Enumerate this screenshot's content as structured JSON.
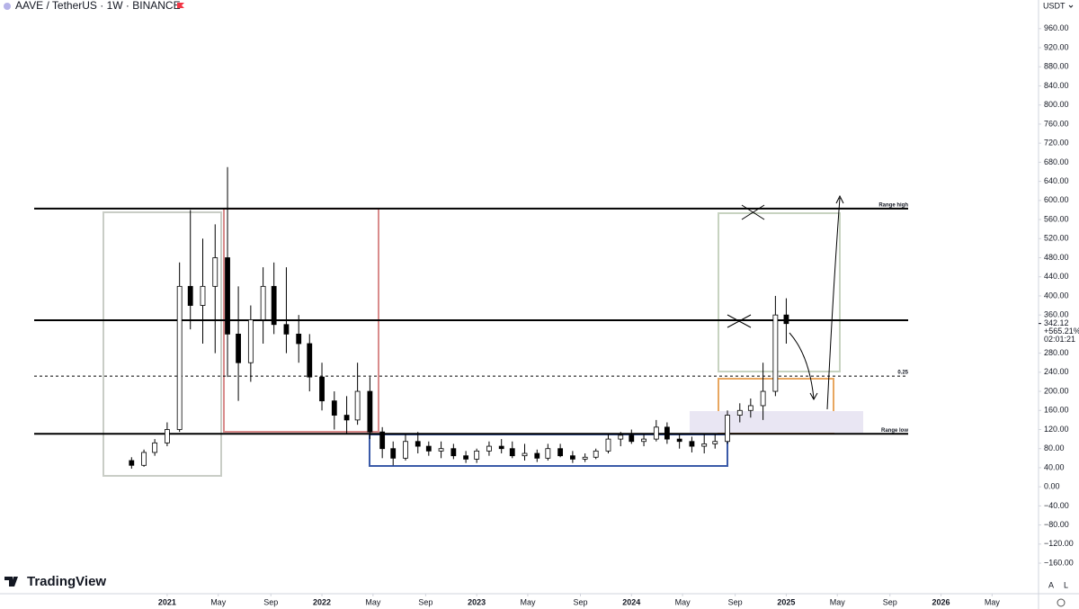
{
  "chart_data": {
    "type": "candlestick",
    "title": "AAVE / TetherUS · 1W · BINANCE",
    "currency": "USDT",
    "x": [
      2020.77,
      2020.85,
      2020.92,
      2021.0,
      2021.08,
      2021.15,
      2021.23,
      2021.31,
      2021.39,
      2021.46,
      2021.54,
      2021.62,
      2021.69,
      2021.77,
      2021.85,
      2021.92,
      2022.0,
      2022.08,
      2022.16,
      2022.23,
      2022.31,
      2022.39,
      2022.46,
      2022.54,
      2022.62,
      2022.69,
      2022.77,
      2022.85,
      2022.93,
      2023.0,
      2023.08,
      2023.16,
      2023.23,
      2023.31,
      2023.39,
      2023.46,
      2023.54,
      2023.62,
      2023.7,
      2023.77,
      2023.85,
      2023.93,
      2024.0,
      2024.08,
      2024.16,
      2024.23,
      2024.31,
      2024.39,
      2024.47,
      2024.54,
      2024.62,
      2024.7,
      2024.77,
      2024.85,
      2024.93,
      2025.0
    ],
    "open": [
      55,
      45,
      72,
      92,
      120,
      420,
      380,
      420,
      480,
      320,
      260,
      350,
      420,
      340,
      320,
      300,
      230,
      180,
      150,
      140,
      200,
      115,
      80,
      60,
      95,
      85,
      75,
      80,
      65,
      58,
      75,
      85,
      80,
      65,
      70,
      60,
      80,
      65,
      58,
      62,
      75,
      100,
      108,
      95,
      100,
      125,
      100,
      95,
      85,
      90,
      95,
      150,
      160,
      170,
      200,
      360
    ],
    "high": [
      62,
      78,
      100,
      135,
      470,
      580,
      520,
      550,
      670,
      420,
      380,
      460,
      470,
      460,
      360,
      320,
      260,
      200,
      190,
      260,
      230,
      125,
      95,
      110,
      115,
      95,
      95,
      90,
      75,
      80,
      95,
      100,
      95,
      90,
      78,
      90,
      90,
      75,
      70,
      80,
      110,
      115,
      120,
      110,
      140,
      135,
      110,
      105,
      110,
      110,
      160,
      175,
      185,
      260,
      400,
      395
    ],
    "low": [
      38,
      42,
      65,
      85,
      115,
      330,
      300,
      280,
      230,
      180,
      220,
      300,
      320,
      280,
      260,
      200,
      160,
      120,
      110,
      130,
      100,
      60,
      45,
      55,
      70,
      65,
      60,
      58,
      50,
      50,
      65,
      70,
      60,
      55,
      52,
      55,
      62,
      50,
      52,
      58,
      70,
      85,
      90,
      85,
      95,
      90,
      80,
      72,
      70,
      80,
      90,
      135,
      145,
      140,
      190,
      300
    ],
    "close": [
      45,
      72,
      92,
      120,
      420,
      380,
      420,
      480,
      320,
      260,
      350,
      420,
      340,
      320,
      300,
      230,
      180,
      150,
      140,
      200,
      115,
      80,
      60,
      95,
      85,
      75,
      80,
      65,
      58,
      75,
      85,
      80,
      65,
      70,
      60,
      80,
      65,
      58,
      62,
      75,
      100,
      108,
      95,
      100,
      125,
      100,
      95,
      85,
      90,
      95,
      150,
      160,
      170,
      200,
      360,
      342
    ],
    "up_color": "#ffffff",
    "down_color": "#000000",
    "outline_color": "#000000",
    "xlim": [
      2019.92,
      2026.63
    ],
    "ylim": [
      -224,
      1020
    ],
    "xticks": [
      2021,
      {
        "value": 2021.33,
        "label": "May"
      },
      {
        "value": 2021.67,
        "label": "Sep"
      },
      2022,
      {
        "value": 2022.33,
        "label": "May"
      },
      {
        "value": 2022.67,
        "label": "Sep"
      },
      2023,
      {
        "value": 2023.33,
        "label": "May"
      },
      {
        "value": 2023.67,
        "label": "Sep"
      },
      2024,
      {
        "value": 2024.33,
        "label": "May"
      },
      {
        "value": 2024.67,
        "label": "Sep"
      },
      2025,
      {
        "value": 2025.33,
        "label": "May"
      },
      {
        "value": 2025.67,
        "label": "Sep"
      },
      2026,
      {
        "value": 2026.33,
        "label": "May"
      }
    ],
    "yticks": [
      {
        "value": 960,
        "label": "960.00"
      },
      {
        "value": 920,
        "label": "920.00"
      },
      {
        "value": 880,
        "label": "880.00"
      },
      {
        "value": 840,
        "label": "840.00"
      },
      {
        "value": 800,
        "label": "800.00"
      },
      {
        "value": 760,
        "label": "760.00"
      },
      {
        "value": 720,
        "label": "720.00"
      },
      {
        "value": 680,
        "label": "680.00"
      },
      {
        "value": 640,
        "label": "640.00"
      },
      {
        "value": 600,
        "label": "600.00"
      },
      {
        "value": 560,
        "label": "560.00"
      },
      {
        "value": 520,
        "label": "520.00"
      },
      {
        "value": 480,
        "label": "480.00"
      },
      {
        "value": 440,
        "label": "440.00"
      },
      {
        "value": 400,
        "label": "400.00"
      },
      {
        "value": 360,
        "label": "360.00"
      },
      {
        "value": 280,
        "label": "280.00"
      },
      {
        "value": 240,
        "label": "240.00"
      },
      {
        "value": 200,
        "label": "200.00"
      },
      {
        "value": 160,
        "label": "160.00"
      },
      {
        "value": 120,
        "label": "120.00"
      },
      {
        "value": 80,
        "label": "80.00"
      },
      {
        "value": 40,
        "label": "40.00"
      },
      {
        "value": 0,
        "label": "0.00"
      },
      {
        "value": -40,
        "label": "−40.00"
      },
      {
        "value": -80,
        "label": "−80.00"
      },
      {
        "value": -120,
        "label": "−120.00"
      },
      {
        "value": -160,
        "label": "−160.00"
      }
    ],
    "levels": [
      {
        "value": 583,
        "label": "Range high",
        "style": "solid"
      },
      {
        "value": 349,
        "style": "solid"
      },
      {
        "value": 232,
        "label": "0.25",
        "style": "dashed"
      },
      {
        "value": 111,
        "label": "Range low",
        "style": "solid"
      }
    ],
    "last_price": {
      "value": 342.12,
      "label": "342.12"
    },
    "change_label": "+565.21%",
    "countdown": "02:01:21"
  },
  "branding": "TradingView",
  "axis_buttons": [
    "A",
    "L"
  ]
}
